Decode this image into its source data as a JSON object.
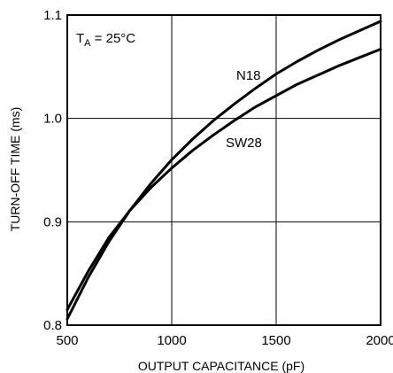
{
  "chart_data": {
    "type": "line",
    "title": "",
    "xlabel": "OUTPUT CAPACITANCE (pF)",
    "ylabel": "TURN-OFF TIME (ms)",
    "xlim": [
      500,
      2000
    ],
    "ylim": [
      0.8,
      1.1
    ],
    "x_ticks": [
      500,
      1000,
      1500,
      2000
    ],
    "y_ticks": [
      0.8,
      0.9,
      1.0,
      1.1
    ],
    "x_tick_labels": [
      "500",
      "1000",
      "1500",
      "2000"
    ],
    "y_tick_labels": [
      "0.8",
      "0.9",
      "1.0",
      "1.1"
    ],
    "grid": true,
    "line_color": "#000000",
    "condition_label": {
      "prefix": "T",
      "subscript": "A",
      "suffix": " = 25°C"
    },
    "series": [
      {
        "name": "N18",
        "x": [
          500,
          600,
          700,
          800,
          900,
          1000,
          1100,
          1200,
          1300,
          1400,
          1500,
          1600,
          1700,
          1800,
          1900,
          2000
        ],
        "y": [
          0.806,
          0.846,
          0.881,
          0.911,
          0.937,
          0.96,
          0.98,
          0.998,
          1.014,
          1.029,
          1.043,
          1.055,
          1.066,
          1.076,
          1.085,
          1.094
        ]
      },
      {
        "name": "SW28",
        "x": [
          500,
          600,
          700,
          800,
          900,
          1000,
          1100,
          1200,
          1300,
          1400,
          1500,
          1600,
          1700,
          1800,
          1900,
          2000
        ],
        "y": [
          0.815,
          0.852,
          0.885,
          0.911,
          0.933,
          0.952,
          0.969,
          0.984,
          0.998,
          1.011,
          1.022,
          1.033,
          1.042,
          1.051,
          1.059,
          1.067
        ]
      }
    ]
  }
}
